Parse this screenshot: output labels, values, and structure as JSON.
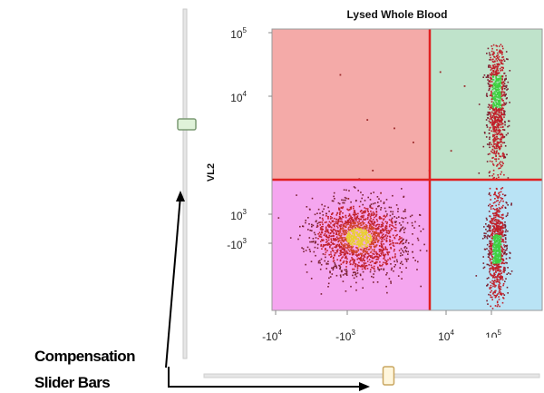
{
  "chart_data": {
    "type": "scatter",
    "title": "Lysed Whole Blood",
    "xlabel": "",
    "ylabel": "VL2",
    "x_scale": "biexponential",
    "y_scale": "biexponential",
    "x_ticks": [
      {
        "base": "-10",
        "exp": "4"
      },
      {
        "base": "-10",
        "exp": "3"
      },
      {
        "base": "10",
        "exp": "4"
      },
      {
        "base": "10",
        "exp": "5"
      }
    ],
    "y_ticks": [
      {
        "base": "10",
        "exp": "5"
      },
      {
        "base": "10",
        "exp": "4"
      },
      {
        "base": "10",
        "exp": "3"
      },
      {
        "base": "-10",
        "exp": "3"
      }
    ],
    "gates": [
      {
        "name": "upper-left",
        "color": "#f4aaa8"
      },
      {
        "name": "upper-right",
        "color": "#bfe3cb"
      },
      {
        "name": "lower-left",
        "color": "#f5a6ef"
      },
      {
        "name": "lower-right",
        "color": "#b9e3f5"
      }
    ],
    "gate_line_color": "#e02020",
    "grid": false,
    "populations": [
      {
        "name": "lower-left",
        "x_center": 1,
        "y_center": -1.2,
        "density_color": "#c0202a",
        "core_color": "#e8d030"
      },
      {
        "name": "upper-right",
        "x_center": 5,
        "y_center": 3.8,
        "density_color": "#c0202a",
        "core_color": "#3fd040"
      },
      {
        "name": "lower-right",
        "x_center": 5,
        "y_center": 1.5,
        "density_color": "#c0202a",
        "core_color": "#3fd040"
      }
    ]
  },
  "annotation": {
    "line1": "Compensation",
    "line2": "Slider Bars"
  },
  "sliders": {
    "vertical_value": 0.67,
    "horizontal_value": 0.55
  }
}
